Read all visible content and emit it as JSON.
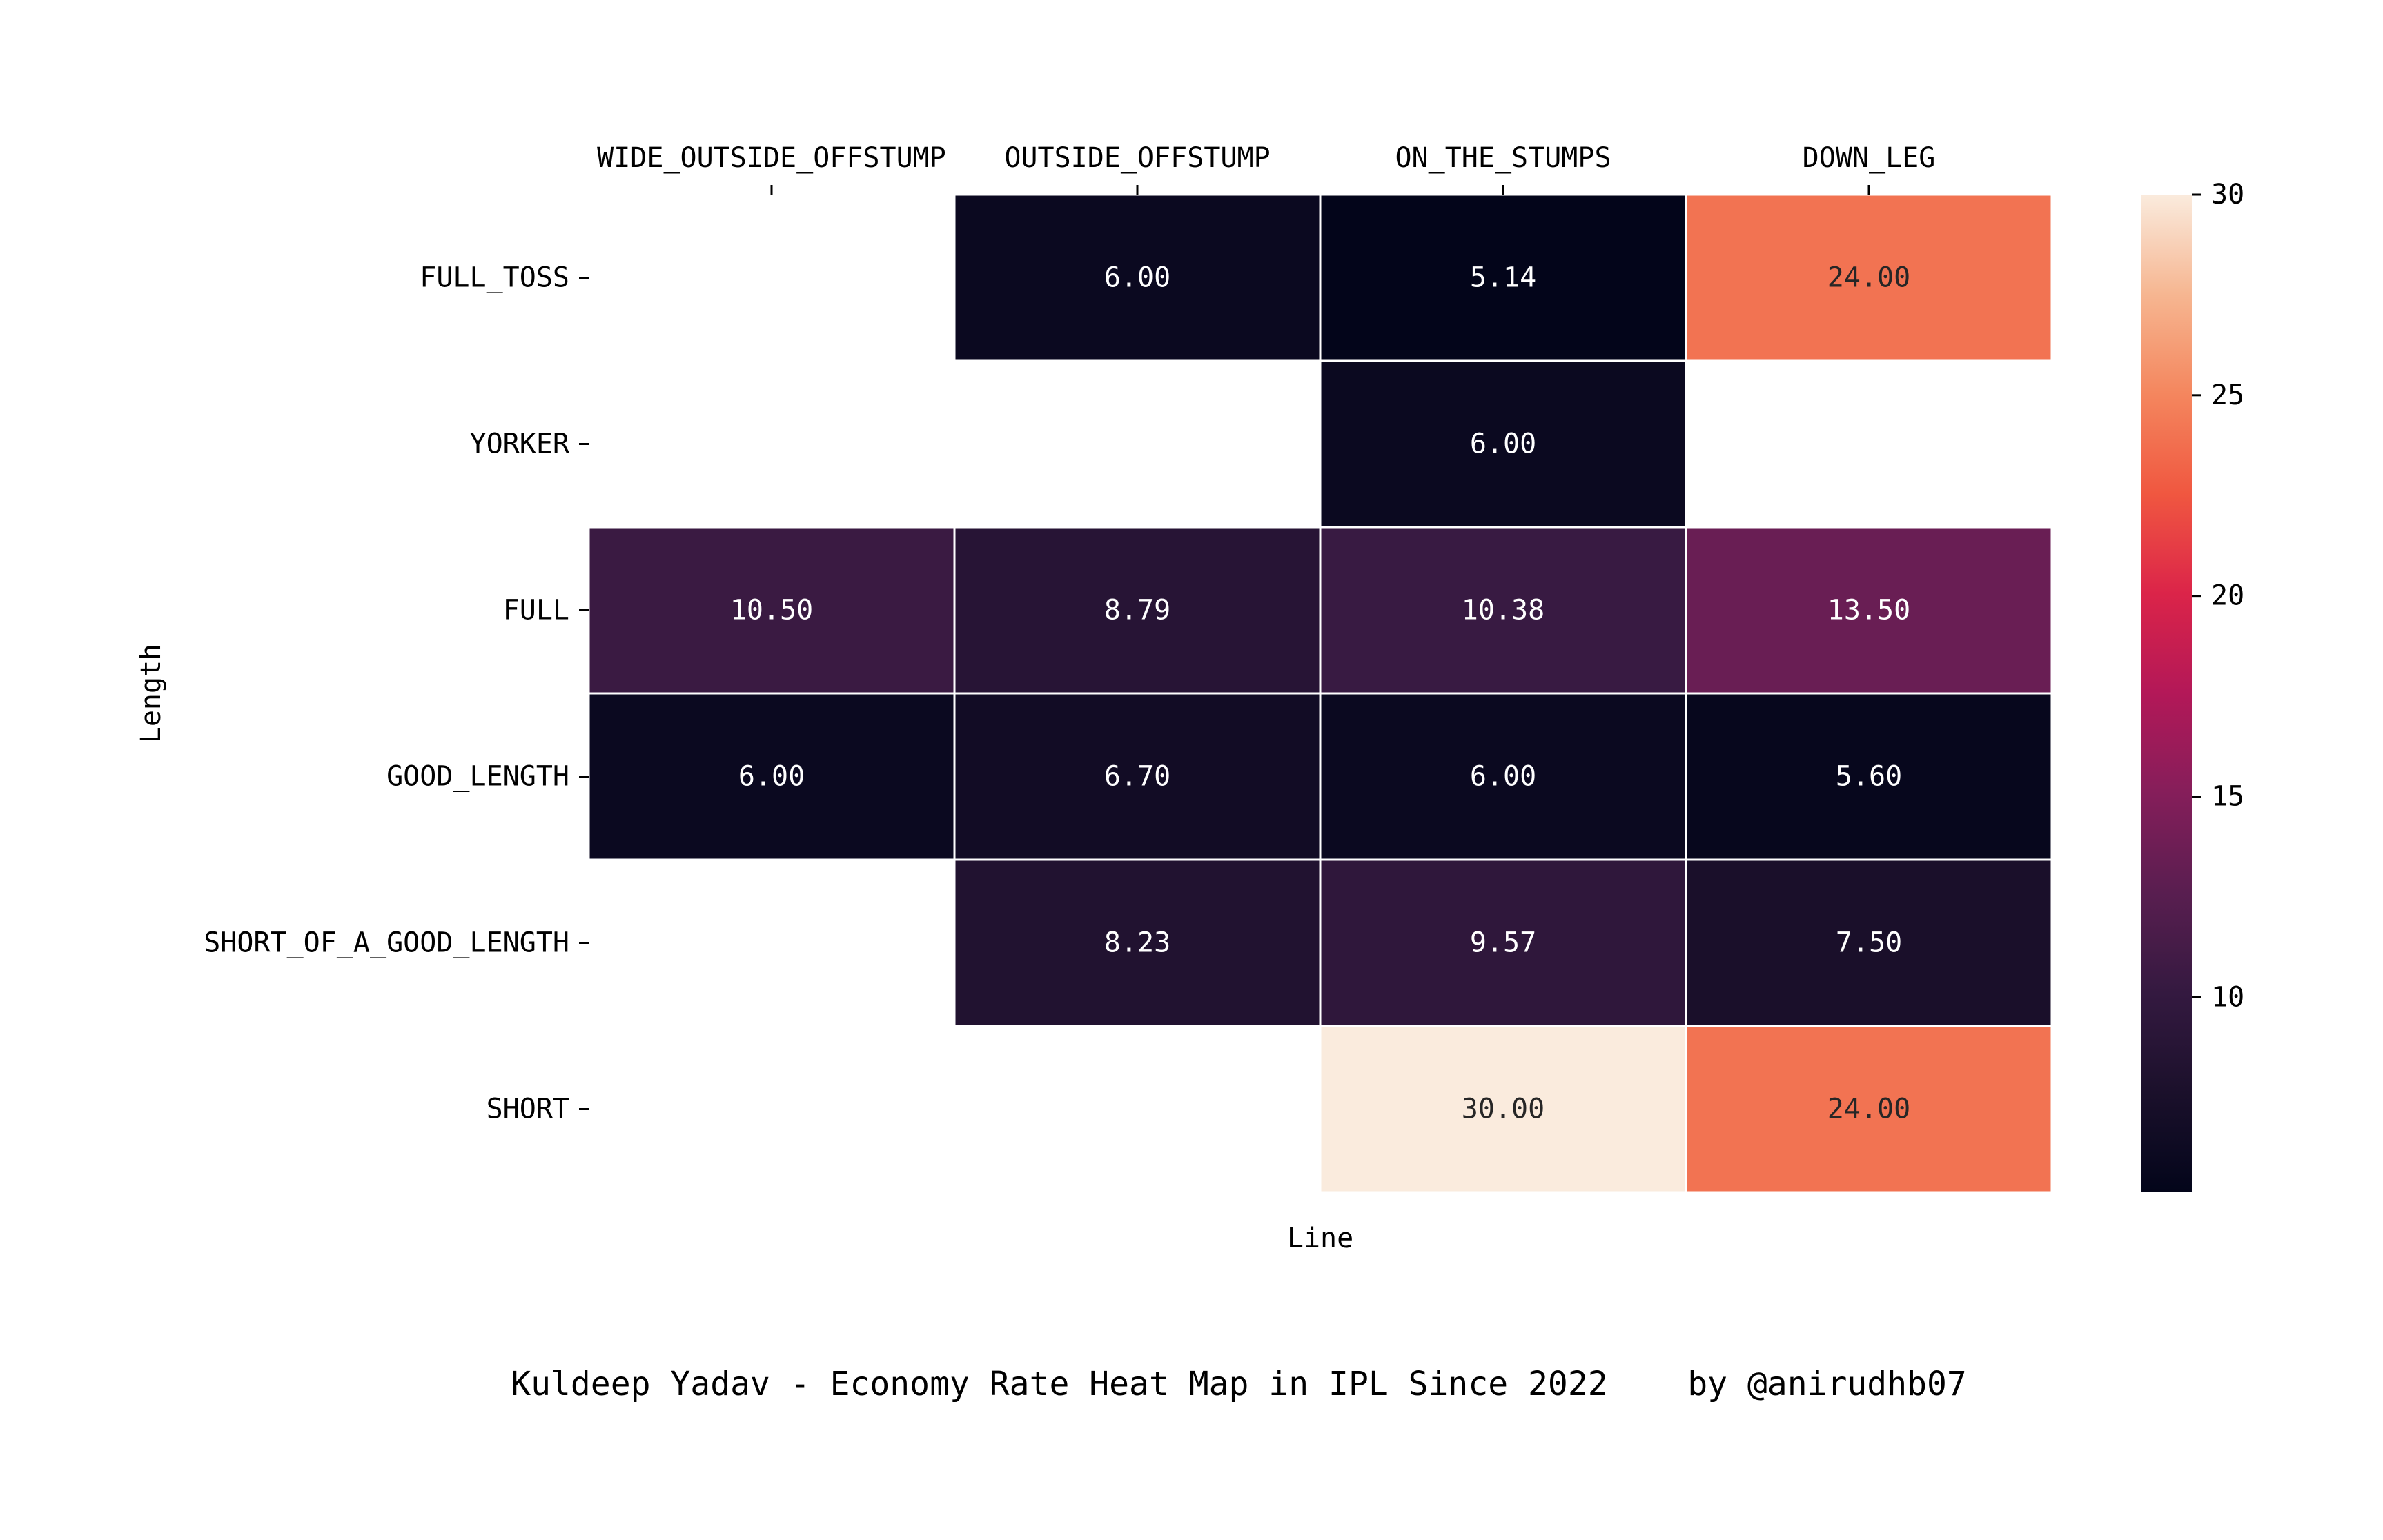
{
  "chart_data": {
    "type": "heatmap",
    "title": "",
    "xlabel": "Line",
    "ylabel": "Length",
    "x_categories": [
      "WIDE_OUTSIDE_OFFSTUMP",
      "OUTSIDE_OFFSTUMP",
      "ON_THE_STUMPS",
      "DOWN_LEG"
    ],
    "y_categories": [
      "FULL_TOSS",
      "YORKER",
      "FULL",
      "GOOD_LENGTH",
      "SHORT_OF_A_GOOD_LENGTH",
      "SHORT"
    ],
    "values": [
      [
        null,
        6.0,
        5.14,
        24.0
      ],
      [
        null,
        null,
        6.0,
        null
      ],
      [
        10.5,
        8.79,
        10.38,
        13.5
      ],
      [
        6.0,
        6.7,
        6.0,
        5.6
      ],
      [
        null,
        8.23,
        9.57,
        7.5
      ],
      [
        null,
        null,
        30.0,
        24.0
      ]
    ],
    "cell_labels": [
      [
        "",
        "6.00",
        "5.14",
        "24.00"
      ],
      [
        "",
        "",
        "6.00",
        ""
      ],
      [
        "10.50",
        "8.79",
        "10.38",
        "13.50"
      ],
      [
        "6.00",
        "6.70",
        "6.00",
        "5.60"
      ],
      [
        "",
        "8.23",
        "9.57",
        "7.50"
      ],
      [
        "",
        "",
        "30.00",
        "24.00"
      ]
    ],
    "colorbar": {
      "range": [
        5.14,
        30
      ],
      "ticks": [
        10,
        15,
        20,
        25,
        30
      ],
      "tick_labels": [
        "10",
        "15",
        "20",
        "25",
        "30"
      ],
      "colormap": "rocket"
    },
    "x_axis_position": "top",
    "grid": false,
    "cell_border_color": "#ffffff"
  },
  "caption": {
    "text": "Kuldeep Yadav - Economy Rate Heat Map in IPL Since 2022    by @anirudhb07"
  }
}
